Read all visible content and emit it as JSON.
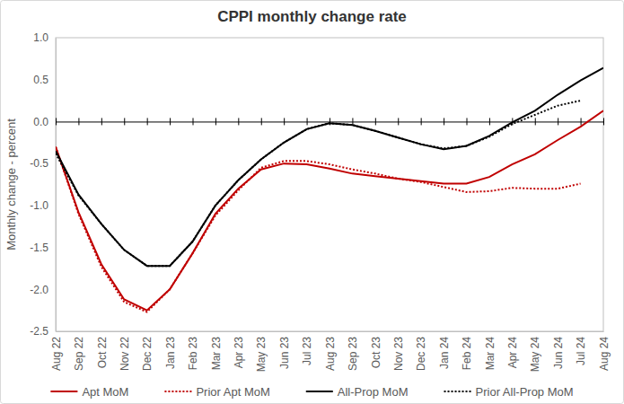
{
  "chart_data": {
    "type": "line",
    "title": "CPPI monthly change rate",
    "y_label": "Monthly change - percent",
    "categories": [
      "Aug 22",
      "Sep 22",
      "Oct 22",
      "Nov 22",
      "Dec 22",
      "Jan 23",
      "Feb 23",
      "Mar 23",
      "Apr 23",
      "May 23",
      "Jun 23",
      "Jul 23",
      "Aug 23",
      "Sep 23",
      "Oct 23",
      "Nov 23",
      "Dec 23",
      "Jan 24",
      "Feb 24",
      "Mar 24",
      "Apr 24",
      "May 24",
      "Jun 24",
      "Jul 24",
      "Aug 24"
    ],
    "ylim": [
      -2.5,
      1.0
    ],
    "yticks": [
      -2.5,
      {
        "value": -2,
        "label": "-2.0"
      },
      -1.5,
      {
        "value": -1,
        "label": "-1.0"
      },
      -0.5,
      {
        "value": 0,
        "label": "0.0"
      },
      0.5,
      {
        "value": 1,
        "label": "1.0"
      }
    ],
    "grid": false,
    "legend": "bottom",
    "series": [
      {
        "name": "Apt MoM",
        "color": "#c00000",
        "line_style": "solid",
        "values": [
          -0.3,
          -1.08,
          -1.7,
          -2.12,
          -2.25,
          -2.0,
          -1.57,
          -1.1,
          -0.8,
          -0.57,
          -0.5,
          -0.51,
          -0.56,
          -0.62,
          -0.65,
          -0.68,
          -0.71,
          -0.74,
          -0.74,
          -0.66,
          -0.51,
          -0.39,
          -0.22,
          -0.06,
          0.13
        ]
      },
      {
        "name": "Prior Apt MoM",
        "color": "#c00000",
        "line_style": "dotted",
        "values": [
          -0.3,
          -1.1,
          -1.73,
          -2.15,
          -2.27,
          -2.0,
          -1.57,
          -1.12,
          -0.82,
          -0.55,
          -0.47,
          -0.47,
          -0.51,
          -0.57,
          -0.62,
          -0.68,
          -0.72,
          -0.78,
          -0.84,
          -0.83,
          -0.79,
          -0.8,
          -0.8,
          -0.74,
          null
        ]
      },
      {
        "name": "All-Prop MoM",
        "color": "#000000",
        "line_style": "solid",
        "values": [
          -0.35,
          -0.87,
          -1.22,
          -1.53,
          -1.72,
          -1.72,
          -1.43,
          -1.0,
          -0.7,
          -0.45,
          -0.25,
          -0.09,
          -0.02,
          -0.04,
          -0.11,
          -0.19,
          -0.27,
          -0.33,
          -0.29,
          -0.17,
          -0.01,
          0.13,
          0.32,
          0.49,
          0.64
        ]
      },
      {
        "name": "Prior All-Prop MoM",
        "color": "#000000",
        "line_style": "dotted",
        "values": [
          -0.38,
          -0.88,
          -1.22,
          -1.53,
          -1.72,
          -1.72,
          -1.43,
          -1.0,
          -0.7,
          -0.45,
          -0.25,
          -0.09,
          -0.02,
          -0.04,
          -0.11,
          -0.19,
          -0.27,
          -0.32,
          -0.29,
          -0.18,
          -0.03,
          0.08,
          0.19,
          0.25,
          null
        ]
      }
    ]
  }
}
